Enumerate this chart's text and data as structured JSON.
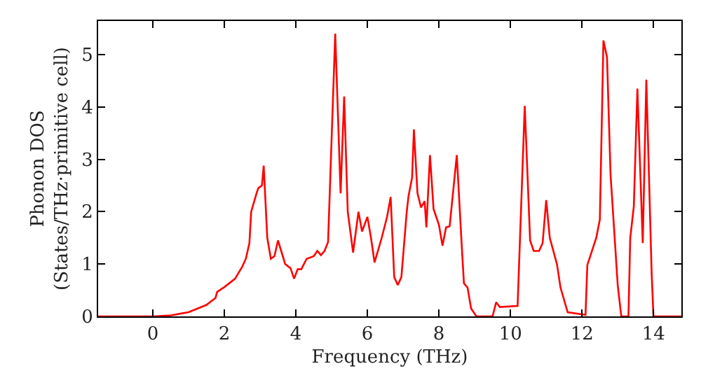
{
  "chart_data": {
    "type": "line",
    "xlabel": "Frequency (THz)",
    "ylabel": "Phonon DOS\n(States/THz·primitive cell)",
    "xlim": [
      -1.53,
      14.78
    ],
    "ylim": [
      0,
      5.64
    ],
    "xticks": [
      0,
      2,
      4,
      6,
      8,
      10,
      12,
      14
    ],
    "yticks": [
      0,
      1,
      2,
      3,
      4,
      5
    ],
    "marker": "none",
    "line_style": "solid",
    "series": [
      {
        "color": "#ff0000",
        "x": [
          -1.53,
          0,
          0.5,
          1,
          1.5,
          1.75,
          1.8,
          2,
          2.3,
          2.5,
          2.6,
          2.7,
          2.75,
          2.9,
          2.95,
          3.05,
          3.1,
          3.2,
          3.3,
          3.4,
          3.5,
          3.7,
          3.85,
          3.95,
          4.05,
          4.15,
          4.3,
          4.5,
          4.6,
          4.7,
          4.8,
          4.9,
          5.1,
          5.25,
          5.35,
          5.45,
          5.6,
          5.75,
          5.85,
          6.0,
          6.1,
          6.2,
          6.4,
          6.55,
          6.65,
          6.75,
          6.85,
          6.95,
          7.1,
          7.15,
          7.25,
          7.3,
          7.4,
          7.5,
          7.6,
          7.65,
          7.75,
          7.85,
          8.0,
          8.1,
          8.2,
          8.3,
          8.5,
          8.65,
          8.7,
          8.8,
          8.9,
          9.05,
          9.5,
          9.6,
          9.7,
          10.2,
          10.4,
          10.55,
          10.65,
          10.8,
          10.9,
          11.0,
          11.1,
          11.3,
          11.4,
          11.6,
          12.1,
          12.15,
          12.4,
          12.5,
          12.6,
          12.7,
          12.8,
          13.0,
          13.1,
          13.3,
          13.35,
          13.45,
          13.55,
          13.7,
          13.8,
          13.95,
          14.0,
          14.78
        ],
        "values": [
          0,
          0,
          0.02,
          0.08,
          0.22,
          0.35,
          0.47,
          0.56,
          0.72,
          0.95,
          1.1,
          1.4,
          2.0,
          2.35,
          2.45,
          2.5,
          2.88,
          1.5,
          1.1,
          1.15,
          1.45,
          1.0,
          0.92,
          0.72,
          0.9,
          0.9,
          1.1,
          1.15,
          1.25,
          1.17,
          1.25,
          1.42,
          5.4,
          2.35,
          4.2,
          2.0,
          1.22,
          2.0,
          1.62,
          1.9,
          1.5,
          1.03,
          1.5,
          1.9,
          2.28,
          0.75,
          0.6,
          0.75,
          2.0,
          2.3,
          2.65,
          3.57,
          2.35,
          2.08,
          2.2,
          1.7,
          3.08,
          2.05,
          1.75,
          1.35,
          1.7,
          1.72,
          3.08,
          1.2,
          0.63,
          0.55,
          0.15,
          0,
          0,
          0.27,
          0.18,
          0.2,
          4.02,
          1.45,
          1.25,
          1.25,
          1.4,
          2.22,
          1.5,
          1.0,
          0.55,
          0.08,
          0.03,
          0.98,
          1.5,
          1.85,
          5.27,
          4.95,
          2.7,
          0.6,
          0,
          0,
          1.5,
          2.1,
          4.35,
          1.4,
          4.52,
          0.8,
          0,
          0
        ]
      }
    ]
  }
}
